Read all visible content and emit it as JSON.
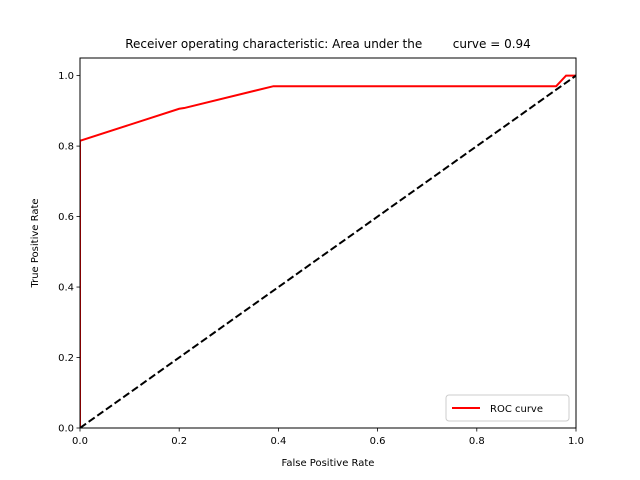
{
  "chart_data": {
    "type": "line",
    "title": "Receiver operating characteristic: Area under the        curve = 0.94",
    "xlabel": "False Positive Rate",
    "ylabel": "True Positive Rate",
    "xlim": [
      0.0,
      1.0
    ],
    "ylim": [
      0.0,
      1.05
    ],
    "x_ticks": [
      "0.0",
      "0.2",
      "0.4",
      "0.6",
      "0.8",
      "1.0"
    ],
    "y_ticks": [
      "0.0",
      "0.2",
      "0.4",
      "0.6",
      "0.8",
      "1.0"
    ],
    "grid": false,
    "legend_position": "lower-right",
    "series": [
      {
        "name": "ROC curve",
        "color": "#ff0000",
        "style": "solid",
        "x": [
          0.0,
          0.0,
          0.2,
          0.21,
          0.39,
          0.96,
          0.98,
          1.0
        ],
        "y": [
          0.0,
          0.815,
          0.906,
          0.908,
          0.97,
          0.97,
          1.0,
          1.0
        ]
      },
      {
        "color": "#000000",
        "style": "dashed",
        "x": [
          0.0,
          1.0
        ],
        "y": [
          0.0,
          1.0
        ]
      }
    ]
  }
}
